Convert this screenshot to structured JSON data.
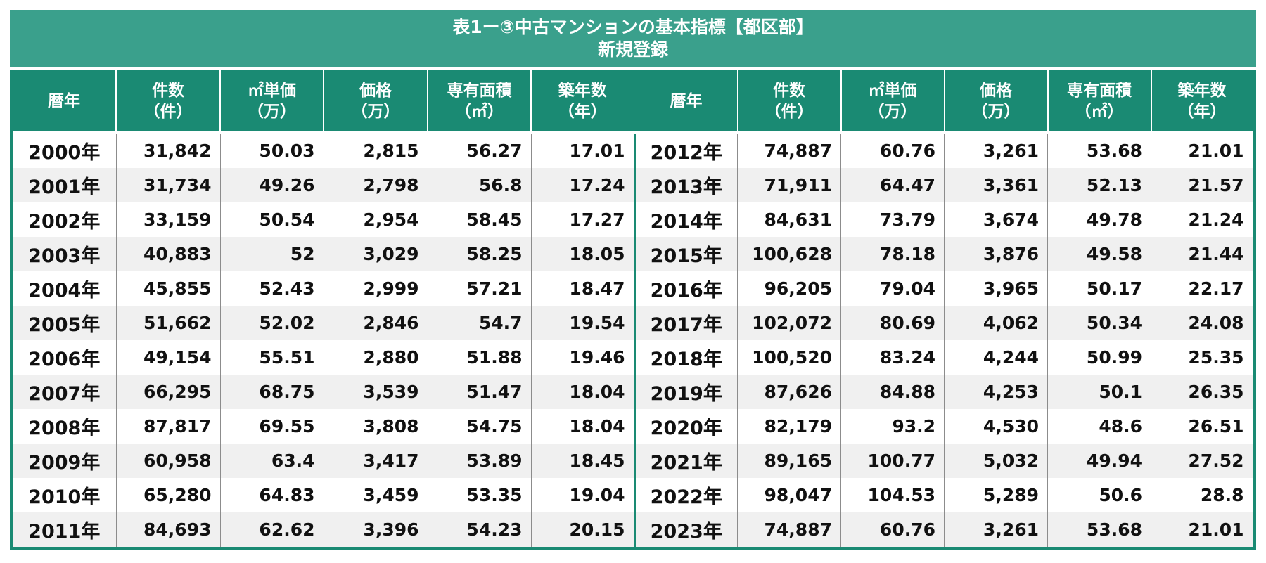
{
  "title": {
    "line1": "表1ー③中古マンションの基本指標【都区部】",
    "line2": "新規登録"
  },
  "headers": [
    {
      "l1": "暦年",
      "l2": ""
    },
    {
      "l1": "件数",
      "l2": "（件）"
    },
    {
      "l1": "㎡単価",
      "l2": "（万）"
    },
    {
      "l1": "価格",
      "l2": "（万）"
    },
    {
      "l1": "専有面積",
      "l2": "（㎡）"
    },
    {
      "l1": "築年数",
      "l2": "（年）"
    }
  ],
  "table_left": [
    [
      "2000年",
      "31,842",
      "50.03",
      "2,815",
      "56.27",
      "17.01"
    ],
    [
      "2001年",
      "31,734",
      "49.26",
      "2,798",
      "56.8",
      "17.24"
    ],
    [
      "2002年",
      "33,159",
      "50.54",
      "2,954",
      "58.45",
      "17.27"
    ],
    [
      "2003年",
      "40,883",
      "52",
      "3,029",
      "58.25",
      "18.05"
    ],
    [
      "2004年",
      "45,855",
      "52.43",
      "2,999",
      "57.21",
      "18.47"
    ],
    [
      "2005年",
      "51,662",
      "52.02",
      "2,846",
      "54.7",
      "19.54"
    ],
    [
      "2006年",
      "49,154",
      "55.51",
      "2,880",
      "51.88",
      "19.46"
    ],
    [
      "2007年",
      "66,295",
      "68.75",
      "3,539",
      "51.47",
      "18.04"
    ],
    [
      "2008年",
      "87,817",
      "69.55",
      "3,808",
      "54.75",
      "18.04"
    ],
    [
      "2009年",
      "60,958",
      "63.4",
      "3,417",
      "53.89",
      "18.45"
    ],
    [
      "2010年",
      "65,280",
      "64.83",
      "3,459",
      "53.35",
      "19.04"
    ],
    [
      "2011年",
      "84,693",
      "62.62",
      "3,396",
      "54.23",
      "20.15"
    ]
  ],
  "table_right": [
    [
      "2012年",
      "74,887",
      "60.76",
      "3,261",
      "53.68",
      "21.01"
    ],
    [
      "2013年",
      "71,911",
      "64.47",
      "3,361",
      "52.13",
      "21.57"
    ],
    [
      "2014年",
      "84,631",
      "73.79",
      "3,674",
      "49.78",
      "21.24"
    ],
    [
      "2015年",
      "100,628",
      "78.18",
      "3,876",
      "49.58",
      "21.44"
    ],
    [
      "2016年",
      "96,205",
      "79.04",
      "3,965",
      "50.17",
      "22.17"
    ],
    [
      "2017年",
      "102,072",
      "80.69",
      "4,062",
      "50.34",
      "24.08"
    ],
    [
      "2018年",
      "100,520",
      "83.24",
      "4,244",
      "50.99",
      "25.35"
    ],
    [
      "2019年",
      "87,626",
      "84.88",
      "4,253",
      "50.1",
      "26.35"
    ],
    [
      "2020年",
      "82,179",
      "93.2",
      "4,530",
      "48.6",
      "26.51"
    ],
    [
      "2021年",
      "89,165",
      "100.77",
      "5,032",
      "49.94",
      "27.52"
    ],
    [
      "2022年",
      "98,047",
      "104.53",
      "5,289",
      "50.6",
      "28.8"
    ],
    [
      "2023年",
      "74,887",
      "60.76",
      "3,261",
      "53.68",
      "21.01"
    ]
  ],
  "colors": {
    "title_bg": "#3aa08c",
    "header_bg": "#1a8a73",
    "stripe": "#f0f0f0"
  }
}
